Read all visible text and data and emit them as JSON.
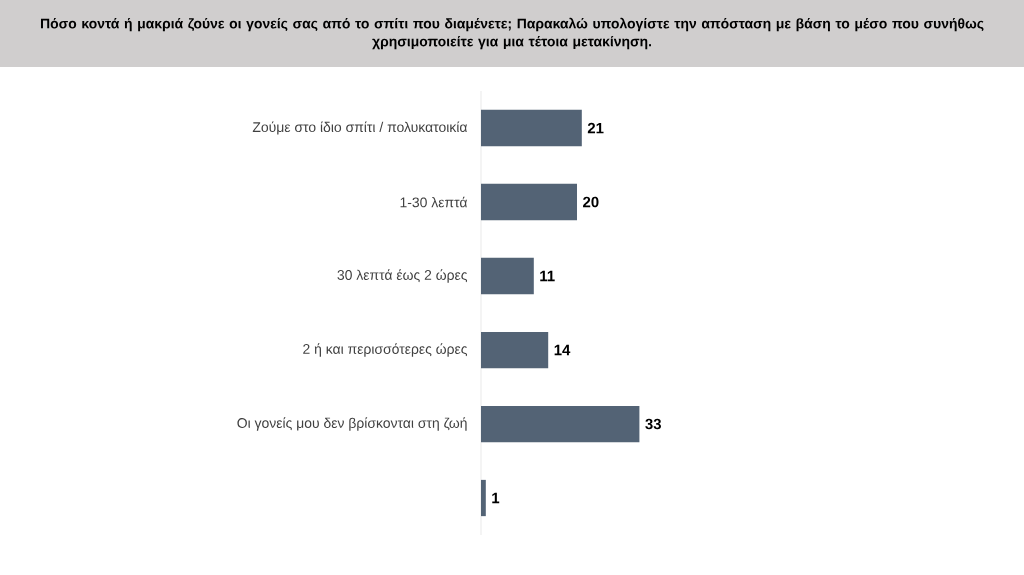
{
  "chart_data": {
    "type": "bar",
    "orientation": "horizontal",
    "title": "Πόσο κοντά ή μακριά ζούνε οι γονείς σας από το σπίτι που διαμένετε; Παρακαλώ υπολογίστε την απόσταση με βάση το μέσο που συνήθως χρησιμοποιείτε για μια τέτοια μετακίνηση.",
    "categories": [
      "Ζούμε στο ίδιο σπίτι / πολυκατοικία",
      "1-30 λεπτά",
      "30 λεπτά έως 2 ώρες",
      "2 ή και περισσότερες ώρες",
      "Οι γονείς μου δεν βρίσκονται στη ζωή",
      null
    ],
    "values": [
      21,
      20,
      11,
      14,
      33,
      1
    ],
    "color": "#536375",
    "data_labels": true,
    "tick_labels": "y"
  }
}
